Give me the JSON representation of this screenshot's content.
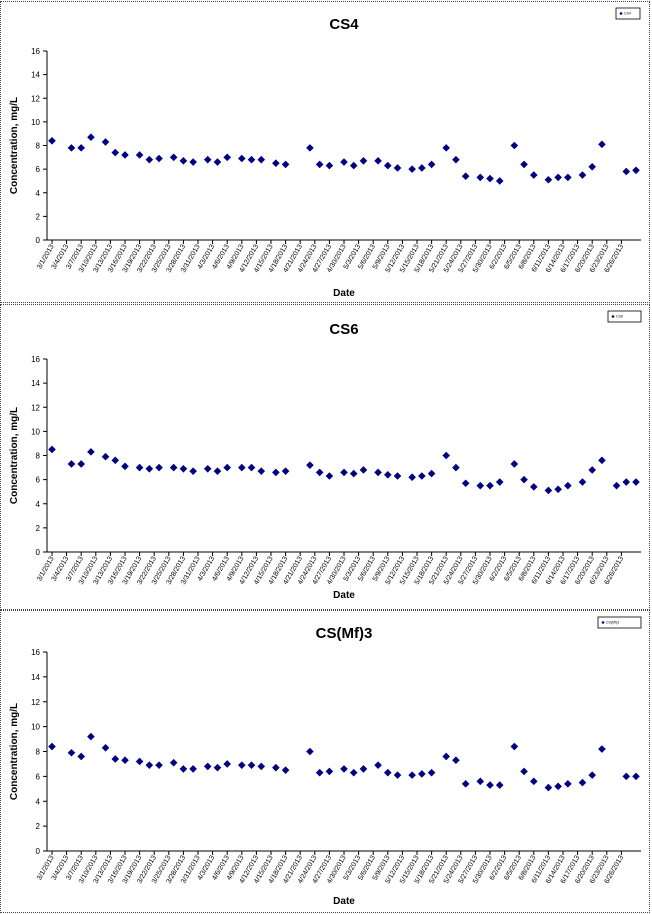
{
  "chart_data": [
    {
      "type": "scatter",
      "title": "CS4",
      "xlabel": "Date",
      "ylabel": "Concentration, mg/L",
      "ylim": [
        0,
        16
      ],
      "yticks": [
        0,
        2,
        4,
        6,
        8,
        10,
        12,
        14,
        16
      ],
      "grid": false,
      "legend": {
        "placement": "top-right",
        "entries": [
          "CS4"
        ]
      },
      "xlim": [
        "3/1/2013",
        "6/29/2013"
      ],
      "xticks": [
        "3/1/2013",
        "3/4/2013",
        "3/7/2013",
        "3/10/2013",
        "3/13/2013",
        "3/16/2013",
        "3/19/2013",
        "3/22/2013",
        "3/25/2013",
        "3/28/2013",
        "3/31/2013",
        "4/3/2013",
        "4/6/2013",
        "4/9/2013",
        "4/12/2013",
        "4/15/2013",
        "4/18/2013",
        "4/21/2013",
        "4/24/2013",
        "4/27/2013",
        "4/30/2013",
        "5/3/2013",
        "5/6/2013",
        "5/9/2013",
        "5/12/2013",
        "5/15/2013",
        "5/18/2013",
        "5/21/2013",
        "5/24/2013",
        "5/27/2013",
        "5/30/2013",
        "6/2/2013",
        "6/5/2013",
        "6/8/2013",
        "6/11/2013",
        "6/14/2013",
        "6/17/2013",
        "6/20/2013",
        "6/23/2013",
        "6/26/2013"
      ],
      "series": [
        {
          "name": "CS4",
          "color": "#000080",
          "points": [
            {
              "x": "3/1/2013",
              "y": 8.4
            },
            {
              "x": "3/5/2013",
              "y": 7.8
            },
            {
              "x": "3/7/2013",
              "y": 7.8
            },
            {
              "x": "3/9/2013",
              "y": 8.7
            },
            {
              "x": "3/12/2013",
              "y": 8.3
            },
            {
              "x": "3/14/2013",
              "y": 7.4
            },
            {
              "x": "3/16/2013",
              "y": 7.2
            },
            {
              "x": "3/19/2013",
              "y": 7.2
            },
            {
              "x": "3/21/2013",
              "y": 6.8
            },
            {
              "x": "3/23/2013",
              "y": 6.9
            },
            {
              "x": "3/26/2013",
              "y": 7.0
            },
            {
              "x": "3/28/2013",
              "y": 6.7
            },
            {
              "x": "3/30/2013",
              "y": 6.6
            },
            {
              "x": "4/2/2013",
              "y": 6.8
            },
            {
              "x": "4/4/2013",
              "y": 6.6
            },
            {
              "x": "4/6/2013",
              "y": 7.0
            },
            {
              "x": "4/9/2013",
              "y": 6.9
            },
            {
              "x": "4/11/2013",
              "y": 6.8
            },
            {
              "x": "4/13/2013",
              "y": 6.8
            },
            {
              "x": "4/16/2013",
              "y": 6.5
            },
            {
              "x": "4/18/2013",
              "y": 6.4
            },
            {
              "x": "4/23/2013",
              "y": 7.8
            },
            {
              "x": "4/25/2013",
              "y": 6.4
            },
            {
              "x": "4/27/2013",
              "y": 6.3
            },
            {
              "x": "4/30/2013",
              "y": 6.6
            },
            {
              "x": "5/2/2013",
              "y": 6.3
            },
            {
              "x": "5/4/2013",
              "y": 6.7
            },
            {
              "x": "5/7/2013",
              "y": 6.7
            },
            {
              "x": "5/9/2013",
              "y": 6.3
            },
            {
              "x": "5/11/2013",
              "y": 6.1
            },
            {
              "x": "5/14/2013",
              "y": 6.0
            },
            {
              "x": "5/16/2013",
              "y": 6.1
            },
            {
              "x": "5/18/2013",
              "y": 6.4
            },
            {
              "x": "5/21/2013",
              "y": 7.8
            },
            {
              "x": "5/23/2013",
              "y": 6.8
            },
            {
              "x": "5/25/2013",
              "y": 5.4
            },
            {
              "x": "5/28/2013",
              "y": 5.3
            },
            {
              "x": "5/30/2013",
              "y": 5.2
            },
            {
              "x": "6/1/2013",
              "y": 5.0
            },
            {
              "x": "6/4/2013",
              "y": 8.0
            },
            {
              "x": "6/6/2013",
              "y": 6.4
            },
            {
              "x": "6/8/2013",
              "y": 5.5
            },
            {
              "x": "6/11/2013",
              "y": 5.1
            },
            {
              "x": "6/13/2013",
              "y": 5.3
            },
            {
              "x": "6/15/2013",
              "y": 5.3
            },
            {
              "x": "6/18/2013",
              "y": 5.5
            },
            {
              "x": "6/20/2013",
              "y": 6.2
            },
            {
              "x": "6/22/2013",
              "y": 8.1
            },
            {
              "x": "6/27/2013",
              "y": 5.8
            },
            {
              "x": "6/29/2013",
              "y": 5.9
            }
          ]
        }
      ]
    },
    {
      "type": "scatter",
      "title": "CS6",
      "xlabel": "Date",
      "ylabel": "Concentration, mg/L",
      "ylim": [
        0,
        16
      ],
      "yticks": [
        0,
        2,
        4,
        6,
        8,
        10,
        12,
        14,
        16
      ],
      "grid": false,
      "legend": {
        "placement": "top-right",
        "entries": [
          "CS6"
        ]
      },
      "xlim": [
        "3/1/2013",
        "6/29/2013"
      ],
      "xticks": [
        "3/1/2013",
        "3/4/2013",
        "3/7/2013",
        "3/10/2013",
        "3/13/2013",
        "3/16/2013",
        "3/19/2013",
        "3/22/2013",
        "3/25/2013",
        "3/28/2013",
        "3/31/2013",
        "4/3/2013",
        "4/6/2013",
        "4/9/2013",
        "4/12/2013",
        "4/15/2013",
        "4/18/2013",
        "4/21/2013",
        "4/24/2013",
        "4/27/2013",
        "4/30/2013",
        "5/3/2013",
        "5/6/2013",
        "5/9/2013",
        "5/12/2013",
        "5/15/2013",
        "5/18/2013",
        "5/21/2013",
        "5/24/2013",
        "5/27/2013",
        "5/30/2013",
        "6/2/2013",
        "6/5/2013",
        "6/8/2013",
        "6/11/2013",
        "6/14/2013",
        "6/17/2013",
        "6/20/2013",
        "6/23/2013",
        "6/26/2013"
      ],
      "series": [
        {
          "name": "CS6",
          "color": "#000080",
          "points": [
            {
              "x": "3/1/2013",
              "y": 8.5
            },
            {
              "x": "3/5/2013",
              "y": 7.3
            },
            {
              "x": "3/7/2013",
              "y": 7.3
            },
            {
              "x": "3/9/2013",
              "y": 8.3
            },
            {
              "x": "3/12/2013",
              "y": 7.9
            },
            {
              "x": "3/14/2013",
              "y": 7.6
            },
            {
              "x": "3/16/2013",
              "y": 7.1
            },
            {
              "x": "3/19/2013",
              "y": 7.0
            },
            {
              "x": "3/21/2013",
              "y": 6.9
            },
            {
              "x": "3/23/2013",
              "y": 7.0
            },
            {
              "x": "3/26/2013",
              "y": 7.0
            },
            {
              "x": "3/28/2013",
              "y": 6.9
            },
            {
              "x": "3/30/2013",
              "y": 6.7
            },
            {
              "x": "4/2/2013",
              "y": 6.9
            },
            {
              "x": "4/4/2013",
              "y": 6.7
            },
            {
              "x": "4/6/2013",
              "y": 7.0
            },
            {
              "x": "4/9/2013",
              "y": 7.0
            },
            {
              "x": "4/11/2013",
              "y": 7.0
            },
            {
              "x": "4/13/2013",
              "y": 6.7
            },
            {
              "x": "4/16/2013",
              "y": 6.6
            },
            {
              "x": "4/18/2013",
              "y": 6.7
            },
            {
              "x": "4/23/2013",
              "y": 7.2
            },
            {
              "x": "4/25/2013",
              "y": 6.6
            },
            {
              "x": "4/27/2013",
              "y": 6.3
            },
            {
              "x": "4/30/2013",
              "y": 6.6
            },
            {
              "x": "5/2/2013",
              "y": 6.5
            },
            {
              "x": "5/4/2013",
              "y": 6.8
            },
            {
              "x": "5/7/2013",
              "y": 6.6
            },
            {
              "x": "5/9/2013",
              "y": 6.4
            },
            {
              "x": "5/11/2013",
              "y": 6.3
            },
            {
              "x": "5/14/2013",
              "y": 6.2
            },
            {
              "x": "5/16/2013",
              "y": 6.3
            },
            {
              "x": "5/18/2013",
              "y": 6.5
            },
            {
              "x": "5/21/2013",
              "y": 8.0
            },
            {
              "x": "5/23/2013",
              "y": 7.0
            },
            {
              "x": "5/25/2013",
              "y": 5.7
            },
            {
              "x": "5/28/2013",
              "y": 5.5
            },
            {
              "x": "5/30/2013",
              "y": 5.5
            },
            {
              "x": "6/1/2013",
              "y": 5.8
            },
            {
              "x": "6/4/2013",
              "y": 7.3
            },
            {
              "x": "6/6/2013",
              "y": 6.0
            },
            {
              "x": "6/8/2013",
              "y": 5.4
            },
            {
              "x": "6/11/2013",
              "y": 5.1
            },
            {
              "x": "6/13/2013",
              "y": 5.2
            },
            {
              "x": "6/15/2013",
              "y": 5.5
            },
            {
              "x": "6/18/2013",
              "y": 5.8
            },
            {
              "x": "6/20/2013",
              "y": 6.8
            },
            {
              "x": "6/22/2013",
              "y": 7.6
            },
            {
              "x": "6/25/2013",
              "y": 5.5
            },
            {
              "x": "6/27/2013",
              "y": 5.8
            },
            {
              "x": "6/29/2013",
              "y": 5.8
            }
          ]
        }
      ]
    },
    {
      "type": "scatter",
      "title": "CS(Mf)3",
      "xlabel": "Date",
      "ylabel": "Concentration, mg/L",
      "ylim": [
        0,
        16
      ],
      "yticks": [
        0,
        2,
        4,
        6,
        8,
        10,
        12,
        14,
        16
      ],
      "grid": false,
      "legend": {
        "placement": "top-right",
        "entries": [
          "CS(Mf)3"
        ]
      },
      "xlim": [
        "3/1/2013",
        "6/29/2013"
      ],
      "xticks": [
        "3/1/2013",
        "3/4/2013",
        "3/7/2013",
        "3/10/2013",
        "3/13/2013",
        "3/16/2013",
        "3/19/2013",
        "3/22/2013",
        "3/25/2013",
        "3/28/2013",
        "3/31/2013",
        "4/3/2013",
        "4/6/2013",
        "4/9/2013",
        "4/12/2013",
        "4/15/2013",
        "4/18/2013",
        "4/21/2013",
        "4/24/2013",
        "4/27/2013",
        "4/30/2013",
        "5/3/2013",
        "5/6/2013",
        "5/9/2013",
        "5/12/2013",
        "5/15/2013",
        "5/18/2013",
        "5/21/2013",
        "5/24/2013",
        "5/27/2013",
        "5/30/2013",
        "6/2/2013",
        "6/5/2013",
        "6/8/2013",
        "6/11/2013",
        "6/14/2013",
        "6/17/2013",
        "6/20/2013",
        "6/23/2013",
        "6/26/2013"
      ],
      "series": [
        {
          "name": "CS(Mf)3",
          "color": "#000080",
          "points": [
            {
              "x": "3/1/2013",
              "y": 8.4
            },
            {
              "x": "3/5/2013",
              "y": 7.9
            },
            {
              "x": "3/7/2013",
              "y": 7.6
            },
            {
              "x": "3/9/2013",
              "y": 9.2
            },
            {
              "x": "3/12/2013",
              "y": 8.3
            },
            {
              "x": "3/14/2013",
              "y": 7.4
            },
            {
              "x": "3/16/2013",
              "y": 7.3
            },
            {
              "x": "3/19/2013",
              "y": 7.2
            },
            {
              "x": "3/21/2013",
              "y": 6.9
            },
            {
              "x": "3/23/2013",
              "y": 6.9
            },
            {
              "x": "3/26/2013",
              "y": 7.1
            },
            {
              "x": "3/28/2013",
              "y": 6.6
            },
            {
              "x": "3/30/2013",
              "y": 6.6
            },
            {
              "x": "4/2/2013",
              "y": 6.8
            },
            {
              "x": "4/4/2013",
              "y": 6.7
            },
            {
              "x": "4/6/2013",
              "y": 7.0
            },
            {
              "x": "4/9/2013",
              "y": 6.9
            },
            {
              "x": "4/11/2013",
              "y": 6.9
            },
            {
              "x": "4/13/2013",
              "y": 6.8
            },
            {
              "x": "4/16/2013",
              "y": 6.7
            },
            {
              "x": "4/18/2013",
              "y": 6.5
            },
            {
              "x": "4/23/2013",
              "y": 8.0
            },
            {
              "x": "4/25/2013",
              "y": 6.3
            },
            {
              "x": "4/27/2013",
              "y": 6.4
            },
            {
              "x": "4/30/2013",
              "y": 6.6
            },
            {
              "x": "5/2/2013",
              "y": 6.3
            },
            {
              "x": "5/4/2013",
              "y": 6.6
            },
            {
              "x": "5/7/2013",
              "y": 6.9
            },
            {
              "x": "5/9/2013",
              "y": 6.3
            },
            {
              "x": "5/11/2013",
              "y": 6.1
            },
            {
              "x": "5/14/2013",
              "y": 6.1
            },
            {
              "x": "5/16/2013",
              "y": 6.2
            },
            {
              "x": "5/18/2013",
              "y": 6.3
            },
            {
              "x": "5/21/2013",
              "y": 7.6
            },
            {
              "x": "5/23/2013",
              "y": 7.3
            },
            {
              "x": "5/25/2013",
              "y": 5.4
            },
            {
              "x": "5/28/2013",
              "y": 5.6
            },
            {
              "x": "5/30/2013",
              "y": 5.3
            },
            {
              "x": "6/1/2013",
              "y": 5.3
            },
            {
              "x": "6/4/2013",
              "y": 8.4
            },
            {
              "x": "6/6/2013",
              "y": 6.4
            },
            {
              "x": "6/8/2013",
              "y": 5.6
            },
            {
              "x": "6/11/2013",
              "y": 5.1
            },
            {
              "x": "6/13/2013",
              "y": 5.2
            },
            {
              "x": "6/15/2013",
              "y": 5.4
            },
            {
              "x": "6/18/2013",
              "y": 5.5
            },
            {
              "x": "6/20/2013",
              "y": 6.1
            },
            {
              "x": "6/22/2013",
              "y": 8.2
            },
            {
              "x": "6/27/2013",
              "y": 6.0
            },
            {
              "x": "6/29/2013",
              "y": 6.0
            }
          ]
        }
      ]
    }
  ]
}
